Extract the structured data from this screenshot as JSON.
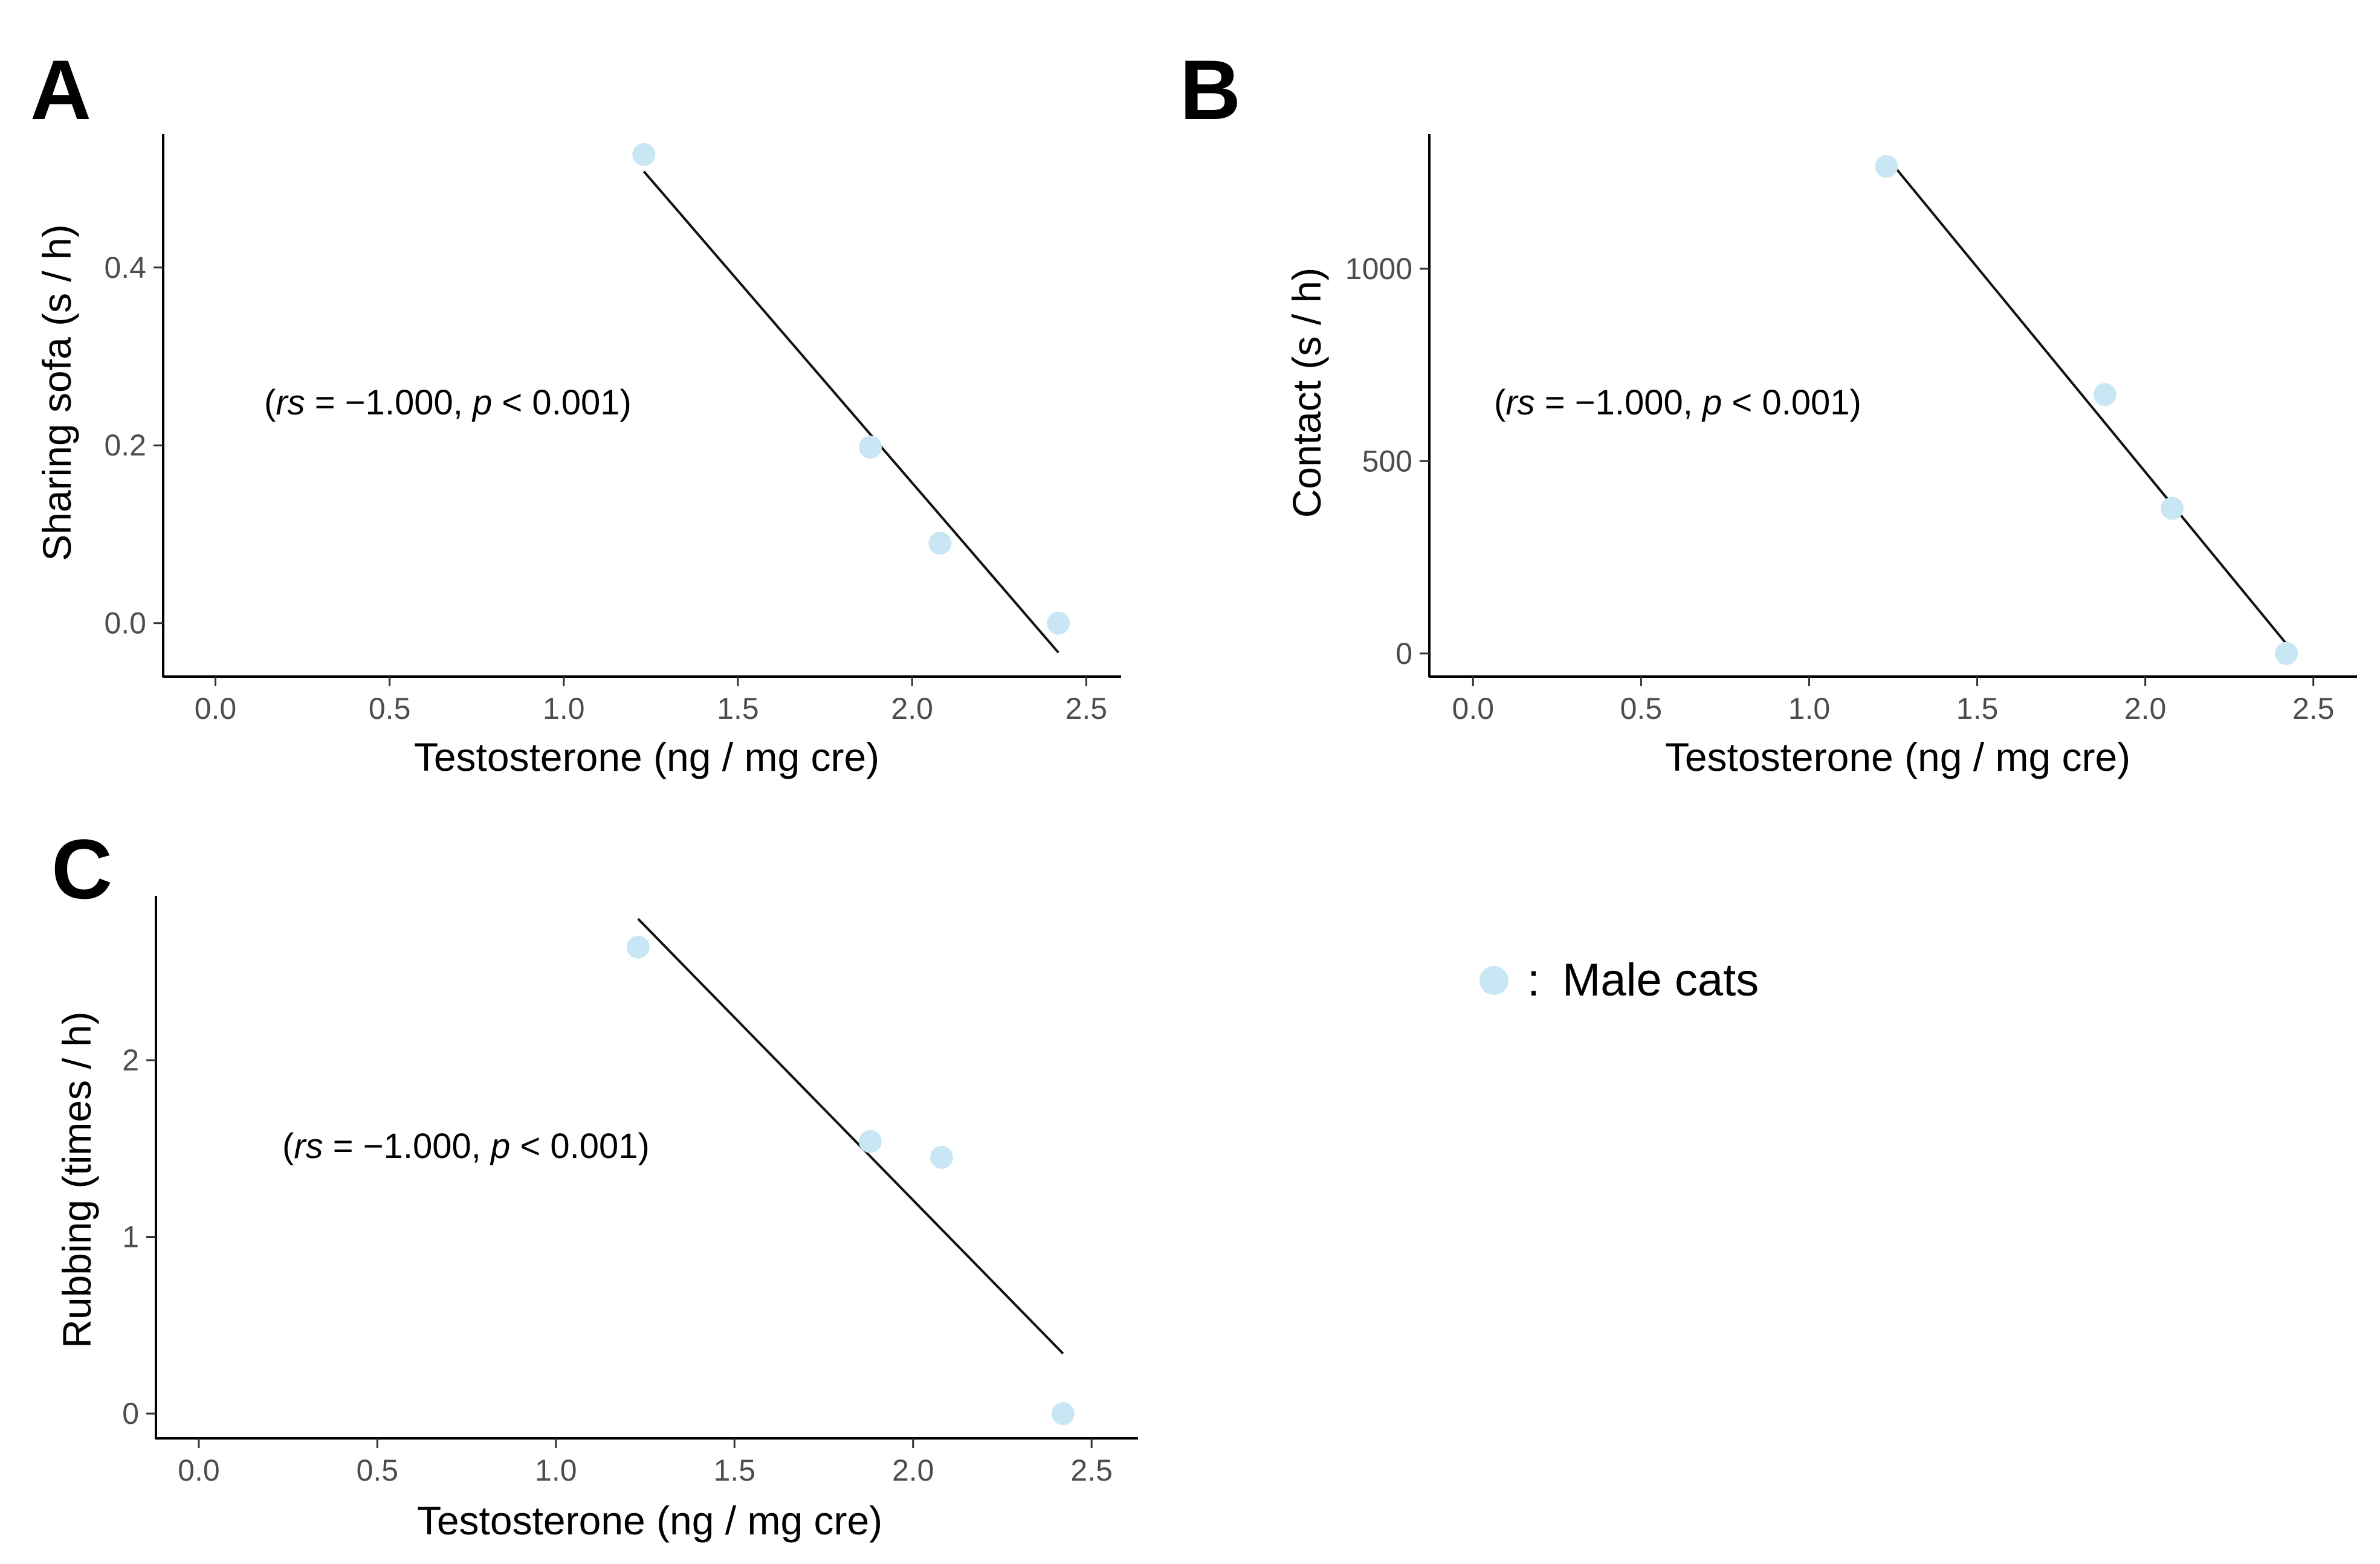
{
  "legend": {
    "marker_color": "#c9e6f5",
    "separator": ":",
    "label": "Male cats"
  },
  "chart_data": [
    {
      "panel": "A",
      "type": "scatter",
      "xlabel": "Testosterone (ng / mg cre)",
      "ylabel": "Sharing sofa (s / h)",
      "xlim": [
        -0.15,
        2.6
      ],
      "ylim": [
        -0.06,
        0.55
      ],
      "xticks": [
        {
          "value": 0.0,
          "label": "0.0"
        },
        {
          "value": 0.5,
          "label": "0.5"
        },
        {
          "value": 1.0,
          "label": "1.0"
        },
        {
          "value": 1.5,
          "label": "1.5"
        },
        {
          "value": 2.0,
          "label": "2.0"
        },
        {
          "value": 2.5,
          "label": "2.5"
        }
      ],
      "yticks": [
        {
          "value": 0.0,
          "label": "0.0"
        },
        {
          "value": 0.2,
          "label": "0.2"
        },
        {
          "value": 0.4,
          "label": "0.4"
        }
      ],
      "x": [
        1.23,
        1.88,
        2.08,
        2.42
      ],
      "y": [
        0.527,
        0.198,
        0.09,
        0.0
      ],
      "fit": {
        "x": [
          1.23,
          2.42
        ],
        "y": [
          0.508,
          -0.033
        ]
      },
      "stat": {
        "open": "(",
        "label_rs": "rs",
        "eq": " = −1.000, ",
        "label_p": "p",
        "rest": " < 0.001)"
      }
    },
    {
      "panel": "B",
      "type": "scatter",
      "xlabel": "Testosterone (ng / mg cre)",
      "ylabel": "Contact (s / h)",
      "xlim": [
        -0.13,
        2.63
      ],
      "ylim": [
        -60,
        1350
      ],
      "xticks": [
        {
          "value": 0.0,
          "label": "0.0"
        },
        {
          "value": 0.5,
          "label": "0.5"
        },
        {
          "value": 1.0,
          "label": "1.0"
        },
        {
          "value": 1.5,
          "label": "1.5"
        },
        {
          "value": 2.0,
          "label": "2.0"
        },
        {
          "value": 2.5,
          "label": "2.5"
        }
      ],
      "yticks": [
        {
          "value": 0,
          "label": "0"
        },
        {
          "value": 500,
          "label": "500"
        },
        {
          "value": 1000,
          "label": "1000"
        }
      ],
      "x": [
        1.23,
        1.88,
        2.08,
        2.42
      ],
      "y": [
        1266,
        673,
        377,
        0
      ],
      "fit": {
        "x": [
          1.23,
          2.42
        ],
        "y": [
          1291,
          25
        ]
      },
      "stat": {
        "open": "(",
        "label_rs": "rs",
        "eq": " = −1.000, ",
        "label_p": "p",
        "rest": " < 0.001)"
      }
    },
    {
      "panel": "C",
      "type": "scatter",
      "xlabel": "Testosterone (ng / mg cre)",
      "ylabel": "Rubbing (times / h)",
      "xlim": [
        -0.12,
        2.63
      ],
      "ylim": [
        -0.14,
        2.93
      ],
      "xticks": [
        {
          "value": 0.0,
          "label": "0.0"
        },
        {
          "value": 0.5,
          "label": "0.5"
        },
        {
          "value": 1.0,
          "label": "1.0"
        },
        {
          "value": 1.5,
          "label": "1.5"
        },
        {
          "value": 2.0,
          "label": "2.0"
        },
        {
          "value": 2.5,
          "label": "2.5"
        }
      ],
      "yticks": [
        {
          "value": 0,
          "label": "0"
        },
        {
          "value": 1,
          "label": "1"
        },
        {
          "value": 2,
          "label": "2"
        }
      ],
      "x": [
        1.23,
        1.88,
        2.08,
        2.42
      ],
      "y": [
        2.64,
        1.54,
        1.45,
        0.0
      ],
      "fit": {
        "x": [
          1.23,
          2.42
        ],
        "y": [
          2.8,
          0.34
        ]
      },
      "stat": {
        "open": "(",
        "label_rs": "rs",
        "eq": " = −1.000, ",
        "label_p": "p",
        "rest": " < 0.001)"
      }
    }
  ]
}
